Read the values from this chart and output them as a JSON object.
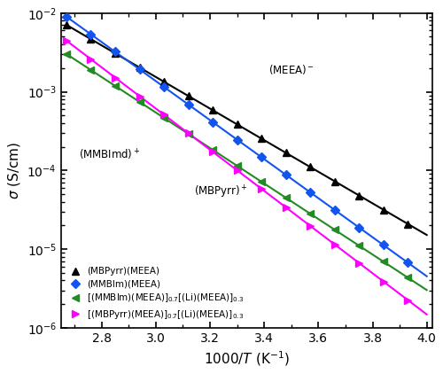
{
  "title": "",
  "xlabel": "1000/T (K⁻¹)",
  "ylabel": "σ (S/cm)",
  "xlim": [
    2.65,
    4.02
  ],
  "ylim_log": [
    -6,
    -2
  ],
  "series": [
    {
      "label": "(MBPyrr)(MEEA)",
      "color": "black",
      "marker": "^",
      "markersize": 6,
      "VTF_A": 0.85,
      "VTF_Ea": 0.062,
      "VTF_T0": 170,
      "x_start": 2.67,
      "x_end": 4.0
    },
    {
      "label": "(MMBIm)(MEEA)",
      "color": "#1a5aff",
      "marker": "D",
      "markersize": 6,
      "VTF_A": 1.2,
      "VTF_Ea": 0.058,
      "VTF_T0": 163,
      "x_start": 2.67,
      "x_end": 4.0
    },
    {
      "label": "[(MMBIm)(MEEA)]$_{0.7}$[(Li)(MEEA)]$_{0.3}$",
      "color": "#2ca02c",
      "marker": "<",
      "markersize": 6,
      "VTF_A": 0.12,
      "VTF_Ea": 0.055,
      "VTF_T0": 195,
      "x_start": 2.67,
      "x_end": 4.0
    },
    {
      "label": "[(MBPyrr)(MEEA)]$_{0.7}$[(Li)(MEEA)]$_{0.3}$",
      "color": "magenta",
      "marker": ">",
      "markersize": 6,
      "VTF_A": 0.065,
      "VTF_Ea": 0.063,
      "VTF_T0": 205,
      "x_start": 2.67,
      "x_end": 4.0
    }
  ],
  "background_color": "#ffffff",
  "grid": false
}
